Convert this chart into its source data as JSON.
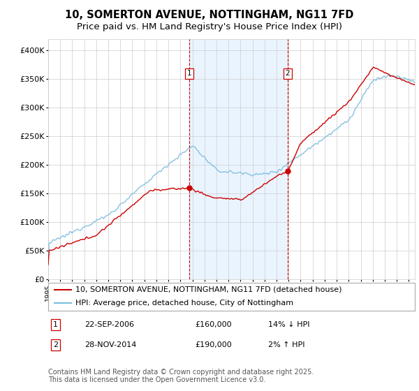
{
  "title_line1": "10, SOMERTON AVENUE, NOTTINGHAM, NG11 7FD",
  "title_line2": "Price paid vs. HM Land Registry's House Price Index (HPI)",
  "ylim": [
    0,
    420000
  ],
  "yticks": [
    0,
    50000,
    100000,
    150000,
    200000,
    250000,
    300000,
    350000,
    400000
  ],
  "ytick_labels": [
    "£0",
    "£50K",
    "£100K",
    "£150K",
    "£200K",
    "£250K",
    "£300K",
    "£350K",
    "£400K"
  ],
  "xlim_start": 1995.0,
  "xlim_end": 2025.5,
  "sale1_date_x": 2006.72,
  "sale1_price": 160000,
  "sale2_date_x": 2014.91,
  "sale2_price": 190000,
  "sale1_label": "1",
  "sale2_label": "2",
  "legend_red": "10, SOMERTON AVENUE, NOTTINGHAM, NG11 7FD (detached house)",
  "legend_blue": "HPI: Average price, detached house, City of Nottingham",
  "footnote": "Contains HM Land Registry data © Crown copyright and database right 2025.\nThis data is licensed under the Open Government Licence v3.0.",
  "red_color": "#cc0000",
  "blue_color": "#7bbcde",
  "vline_color": "#cc0000",
  "shade_color": "#ddeeff",
  "background_color": "#ffffff",
  "grid_color": "#cccccc",
  "title_fontsize": 10.5,
  "subtitle_fontsize": 9.5,
  "tick_fontsize": 8,
  "legend_fontsize": 8,
  "annotation_fontsize": 8,
  "footnote_fontsize": 7
}
